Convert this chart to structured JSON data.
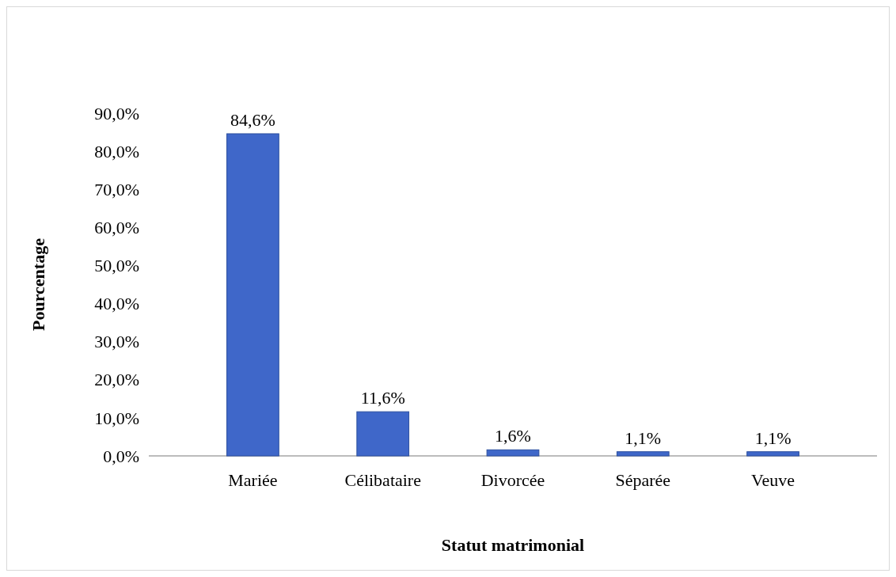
{
  "chart_data": {
    "type": "bar",
    "xlabel": "Statut matrimonial",
    "ylabel": "Pourcentage",
    "categories": [
      "Mariée",
      "Célibataire",
      "Divorcée",
      "Séparée",
      "Veuve"
    ],
    "values": [
      84.6,
      11.6,
      1.6,
      1.1,
      1.1
    ],
    "value_labels": [
      "84,6%",
      "11,6%",
      "1,6%",
      "1,1%",
      "1,1%"
    ],
    "color": "#3f67c9",
    "ylim": [
      0,
      90
    ],
    "yticks": [
      {
        "value": 0,
        "label": "0,0%"
      },
      {
        "value": 10,
        "label": "10,0%"
      },
      {
        "value": 20,
        "label": "20,0%"
      },
      {
        "value": 30,
        "label": "30,0%"
      },
      {
        "value": 40,
        "label": "40,0%"
      },
      {
        "value": 50,
        "label": "50,0%"
      },
      {
        "value": 60,
        "label": "60,0%"
      },
      {
        "value": 70,
        "label": "70,0%"
      },
      {
        "value": 80,
        "label": "80,0%"
      },
      {
        "value": 90,
        "label": "90,0%"
      }
    ],
    "grid": false
  }
}
